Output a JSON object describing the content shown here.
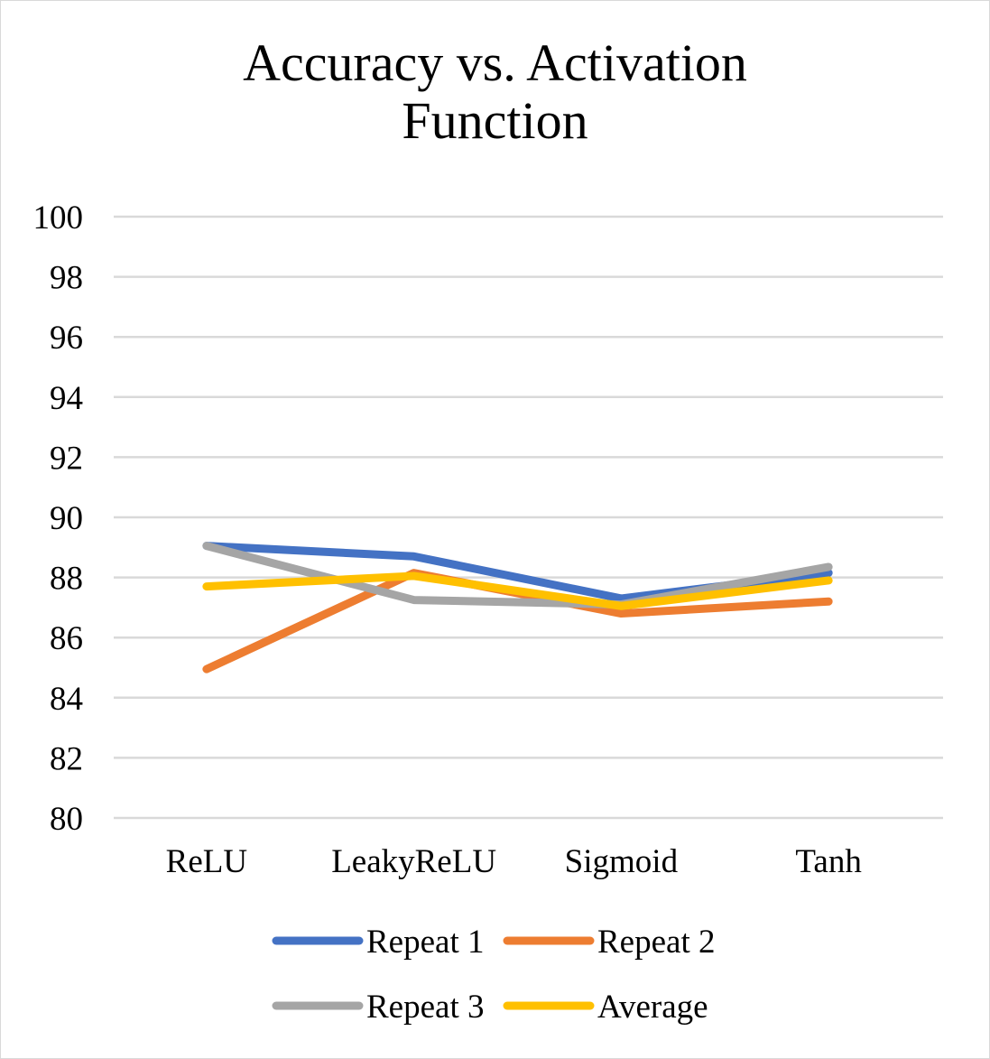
{
  "chart_data": {
    "type": "line",
    "title": "Accuracy vs. Activation Function",
    "title_lines": [
      "Accuracy vs. Activation",
      "Function"
    ],
    "categories": [
      "ReLU",
      "LeakyReLU",
      "Sigmoid",
      "Tanh"
    ],
    "ylim": [
      80,
      100
    ],
    "yticks": [
      80,
      82,
      84,
      86,
      88,
      90,
      92,
      94,
      96,
      98,
      100
    ],
    "ytick_labels": [
      "80",
      "82",
      "84",
      "86",
      "88",
      "90",
      "92",
      "94",
      "96",
      "98",
      "100"
    ],
    "grid": true,
    "legend_position": "bottom",
    "series": [
      {
        "name": "Repeat 1",
        "color": "#4472C4",
        "values": [
          89.05,
          88.7,
          87.3,
          88.15
        ]
      },
      {
        "name": "Repeat 2",
        "color": "#ED7D31",
        "values": [
          84.95,
          88.15,
          86.8,
          87.2
        ]
      },
      {
        "name": "Repeat 3",
        "color": "#A5A5A5",
        "values": [
          89.05,
          87.25,
          87.1,
          88.35
        ]
      },
      {
        "name": "Average",
        "color": "#FFC000",
        "values": [
          87.7,
          88.05,
          87.05,
          87.9
        ]
      }
    ]
  }
}
